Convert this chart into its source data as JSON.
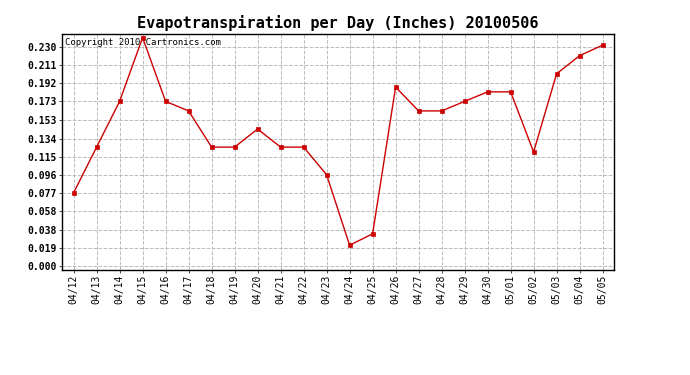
{
  "title": "Evapotranspiration per Day (Inches) 20100506",
  "copyright_text": "Copyright 2010 Cartronics.com",
  "x_labels": [
    "04/12",
    "04/13",
    "04/14",
    "04/15",
    "04/16",
    "04/17",
    "04/18",
    "04/19",
    "04/20",
    "04/21",
    "04/22",
    "04/23",
    "04/24",
    "04/25",
    "04/26",
    "04/27",
    "04/28",
    "04/29",
    "04/30",
    "05/01",
    "05/02",
    "05/03",
    "05/04",
    "05/05"
  ],
  "y_values": [
    0.077,
    0.125,
    0.173,
    0.24,
    0.173,
    0.163,
    0.125,
    0.125,
    0.144,
    0.125,
    0.125,
    0.096,
    0.022,
    0.034,
    0.188,
    0.163,
    0.163,
    0.173,
    0.183,
    0.183,
    0.12,
    0.202,
    0.221,
    0.232
  ],
  "line_color": "#cc0000",
  "marker": "s",
  "marker_size": 2.5,
  "background_color": "#ffffff",
  "grid_color": "#bbbbbb",
  "y_ticks": [
    0.0,
    0.019,
    0.038,
    0.058,
    0.077,
    0.096,
    0.115,
    0.134,
    0.153,
    0.173,
    0.192,
    0.211,
    0.23
  ],
  "ylim": [
    -0.004,
    0.244
  ],
  "title_fontsize": 11,
  "tick_fontsize": 7,
  "copyright_fontsize": 6.5
}
